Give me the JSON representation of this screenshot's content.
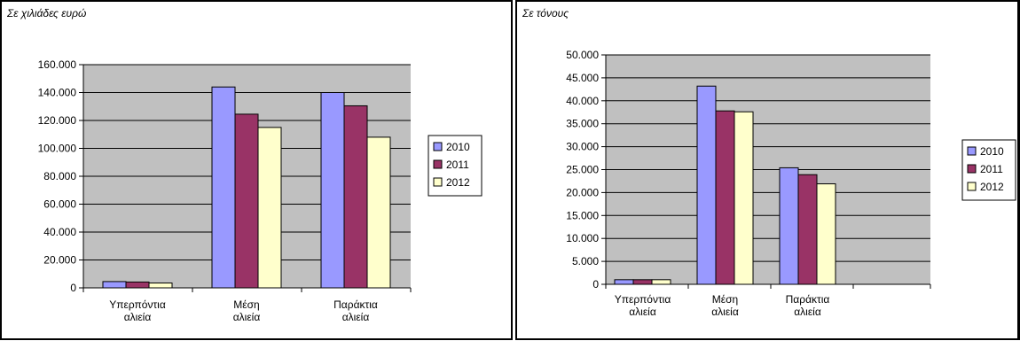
{
  "chart_data": [
    {
      "type": "bar",
      "title": "Σε χιλιάδες ευρώ",
      "categories": [
        [
          "Υπερπόντια",
          "αλιεία"
        ],
        [
          "Μέση",
          "αλιεία"
        ],
        [
          "Παράκτια",
          "αλιεία"
        ]
      ],
      "series": [
        {
          "name": "2010",
          "color": "#9999ff",
          "values": [
            4500,
            144000,
            140000
          ]
        },
        {
          "name": "2011",
          "color": "#993366",
          "values": [
            4200,
            124500,
            130500
          ]
        },
        {
          "name": "2012",
          "color": "#ffffcc",
          "values": [
            3500,
            115000,
            108000
          ]
        }
      ],
      "ylim": [
        0,
        160000
      ],
      "yticks": [
        "0",
        "20.000",
        "40.000",
        "60.000",
        "80.000",
        "100.000",
        "120.000",
        "140.000",
        "160.000"
      ],
      "grid": true,
      "plot_background": "#c0c0c0",
      "legend": "right"
    },
    {
      "type": "bar",
      "title": "Σε τόνους",
      "categories": [
        [
          "Υπερπόντια",
          "αλιεία"
        ],
        [
          "Μέση",
          "αλιεία"
        ],
        [
          "Παράκτια",
          "αλιεία"
        ],
        [
          "",
          ""
        ]
      ],
      "series": [
        {
          "name": "2010",
          "color": "#9999ff",
          "values": [
            1000,
            43200,
            25400,
            null
          ]
        },
        {
          "name": "2011",
          "color": "#993366",
          "values": [
            1000,
            37800,
            23900,
            null
          ]
        },
        {
          "name": "2012",
          "color": "#ffffcc",
          "values": [
            1000,
            37600,
            21900,
            null
          ]
        }
      ],
      "ylim": [
        0,
        50000
      ],
      "yticks": [
        "0",
        "5.000",
        "10.000",
        "15.000",
        "20.000",
        "25.000",
        "30.000",
        "35.000",
        "40.000",
        "45.000",
        "50.000"
      ],
      "grid": true,
      "plot_background": "#c0c0c0",
      "legend": "right"
    }
  ]
}
